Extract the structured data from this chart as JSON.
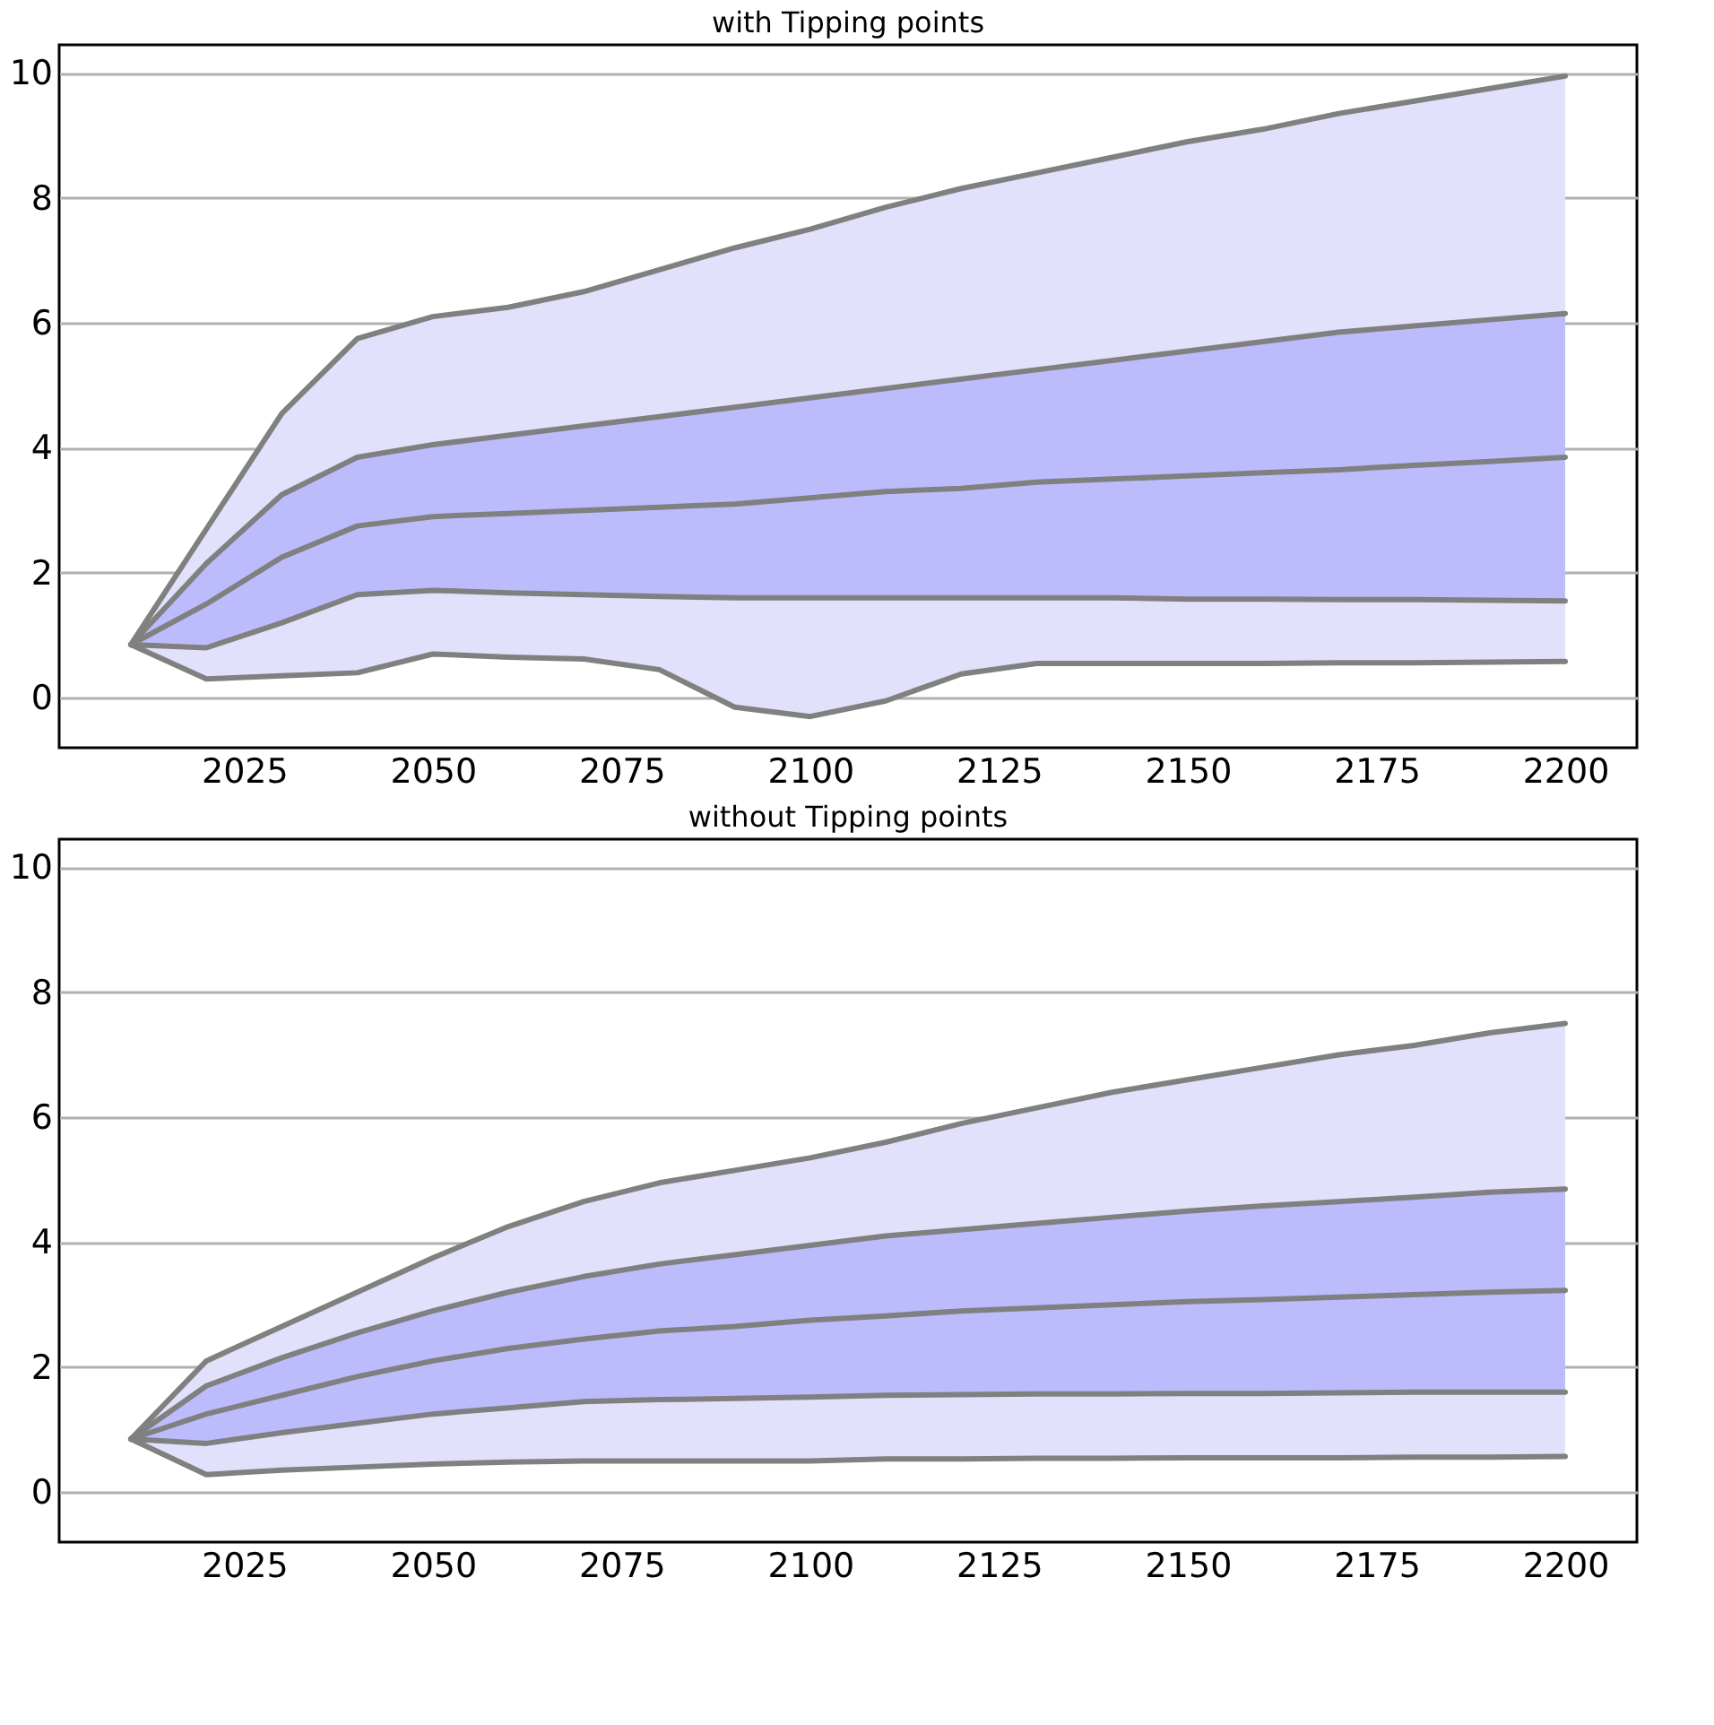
{
  "chart_data": [
    {
      "type": "line",
      "title": "with Tipping points",
      "x": [
        2010,
        2020,
        2030,
        2040,
        2050,
        2060,
        2070,
        2080,
        2090,
        2100,
        2110,
        2120,
        2130,
        2140,
        2150,
        2160,
        2170,
        2180,
        2190,
        2200
      ],
      "series": [
        {
          "color": "#808080",
          "values": [
            0.85,
            2.7,
            4.55,
            5.75,
            6.1,
            6.25,
            6.5,
            6.85,
            7.2,
            7.5,
            7.85,
            8.15,
            8.4,
            8.65,
            8.9,
            9.1,
            9.35,
            9.55,
            9.75,
            9.95
          ],
          "lower": [
            0.85,
            0.3,
            0.35,
            0.4,
            0.7,
            0.65,
            0.62,
            0.45,
            -0.15,
            -0.3,
            -0.05,
            0.38,
            0.55,
            0.55,
            0.55,
            0.55,
            0.56,
            0.56,
            0.57,
            0.58
          ],
          "upper": [
            0.85,
            2.7,
            4.55,
            5.75,
            6.1,
            6.25,
            6.5,
            6.85,
            7.2,
            7.5,
            7.85,
            8.15,
            8.4,
            8.65,
            8.9,
            9.1,
            9.35,
            9.55,
            9.75,
            9.95
          ]
        },
        {
          "color": "#808080",
          "values": [
            0.85,
            2.15,
            3.25,
            3.85,
            4.05,
            4.2,
            4.35,
            4.5,
            4.65,
            4.8,
            4.95,
            5.1,
            5.25,
            5.4,
            5.55,
            5.7,
            5.85,
            5.95,
            6.05,
            6.15
          ]
        },
        {
          "color": "#808080",
          "values": [
            0.85,
            1.5,
            2.25,
            2.75,
            2.9,
            2.95,
            3.0,
            3.05,
            3.1,
            3.2,
            3.3,
            3.35,
            3.45,
            3.5,
            3.55,
            3.6,
            3.65,
            3.72,
            3.78,
            3.85
          ],
          "lower": [
            0.85,
            0.8,
            1.2,
            1.65,
            1.72,
            1.68,
            1.65,
            1.62,
            1.6,
            1.6,
            1.6,
            1.6,
            1.6,
            1.6,
            1.58,
            1.58,
            1.57,
            1.57,
            1.56,
            1.55
          ],
          "upper": [
            0.85,
            2.15,
            3.25,
            3.85,
            4.05,
            4.2,
            4.35,
            4.5,
            4.65,
            4.8,
            4.95,
            5.1,
            5.25,
            5.4,
            5.55,
            5.7,
            5.85,
            5.95,
            6.05,
            6.15
          ]
        },
        {
          "color": "#808080",
          "values": [
            0.85,
            0.8,
            1.2,
            1.65,
            1.72,
            1.68,
            1.65,
            1.62,
            1.6,
            1.6,
            1.6,
            1.6,
            1.6,
            1.6,
            1.58,
            1.58,
            1.57,
            1.57,
            1.56,
            1.55
          ]
        },
        {
          "color": "#808080",
          "values": [
            0.85,
            0.3,
            0.35,
            0.4,
            0.7,
            0.65,
            0.62,
            0.45,
            -0.15,
            -0.3,
            -0.05,
            0.38,
            0.55,
            0.55,
            0.55,
            0.55,
            0.56,
            0.56,
            0.57,
            0.58
          ]
        }
      ],
      "xlim": [
        2000.5,
        2209.5
      ],
      "xticks": [
        2025,
        2050,
        2075,
        2100,
        2125,
        2150,
        2175,
        2200
      ],
      "ylim": [
        -0.8,
        10.45
      ],
      "yticks": [
        0,
        2,
        4,
        6,
        8,
        10
      ],
      "grid": "y",
      "marker": "none",
      "line_style": "solid"
    },
    {
      "type": "line",
      "title": "without Tipping points",
      "x": [
        2010,
        2020,
        2030,
        2040,
        2050,
        2060,
        2070,
        2080,
        2090,
        2100,
        2110,
        2120,
        2130,
        2140,
        2150,
        2160,
        2170,
        2180,
        2190,
        2200
      ],
      "series": [
        {
          "color": "#808080",
          "values": [
            0.85,
            2.1,
            2.65,
            3.2,
            3.75,
            4.25,
            4.65,
            4.95,
            5.15,
            5.35,
            5.6,
            5.9,
            6.15,
            6.4,
            6.6,
            6.8,
            7.0,
            7.15,
            7.35,
            7.5
          ],
          "lower": [
            0.85,
            0.28,
            0.35,
            0.4,
            0.45,
            0.48,
            0.5,
            0.5,
            0.5,
            0.5,
            0.53,
            0.53,
            0.54,
            0.54,
            0.55,
            0.55,
            0.55,
            0.56,
            0.56,
            0.57
          ],
          "upper": [
            0.85,
            2.1,
            2.65,
            3.2,
            3.75,
            4.25,
            4.65,
            4.95,
            5.15,
            5.35,
            5.6,
            5.9,
            6.15,
            6.4,
            6.6,
            6.8,
            7.0,
            7.15,
            7.35,
            7.5
          ]
        },
        {
          "color": "#808080",
          "values": [
            0.85,
            1.7,
            2.15,
            2.55,
            2.9,
            3.2,
            3.45,
            3.65,
            3.8,
            3.95,
            4.1,
            4.2,
            4.3,
            4.4,
            4.5,
            4.58,
            4.65,
            4.72,
            4.8,
            4.85
          ]
        },
        {
          "color": "#808080",
          "values": [
            0.85,
            1.25,
            1.55,
            1.85,
            2.1,
            2.3,
            2.45,
            2.58,
            2.65,
            2.75,
            2.82,
            2.9,
            2.95,
            3.0,
            3.05,
            3.08,
            3.12,
            3.16,
            3.2,
            3.23
          ],
          "lower": [
            0.85,
            0.78,
            0.95,
            1.1,
            1.25,
            1.35,
            1.45,
            1.48,
            1.5,
            1.52,
            1.55,
            1.56,
            1.57,
            1.57,
            1.58,
            1.58,
            1.59,
            1.6,
            1.6,
            1.6
          ],
          "upper": [
            0.85,
            1.7,
            2.15,
            2.55,
            2.9,
            3.2,
            3.45,
            3.65,
            3.8,
            3.95,
            4.1,
            4.2,
            4.3,
            4.4,
            4.5,
            4.58,
            4.65,
            4.72,
            4.8,
            4.85
          ]
        },
        {
          "color": "#808080",
          "values": [
            0.85,
            0.78,
            0.95,
            1.1,
            1.25,
            1.35,
            1.45,
            1.48,
            1.5,
            1.52,
            1.55,
            1.56,
            1.57,
            1.57,
            1.58,
            1.58,
            1.59,
            1.6,
            1.6,
            1.6
          ]
        },
        {
          "color": "#808080",
          "values": [
            0.85,
            0.28,
            0.35,
            0.4,
            0.45,
            0.48,
            0.5,
            0.5,
            0.5,
            0.5,
            0.53,
            0.53,
            0.54,
            0.54,
            0.55,
            0.55,
            0.55,
            0.56,
            0.56,
            0.57
          ]
        }
      ],
      "xlim": [
        2000.5,
        2209.5
      ],
      "xticks": [
        2025,
        2050,
        2075,
        2100,
        2125,
        2150,
        2175,
        2200
      ],
      "ylim": [
        -0.8,
        10.45
      ],
      "yticks": [
        0,
        2,
        4,
        6,
        8,
        10
      ],
      "grid": "y",
      "marker": "none",
      "line_style": "solid"
    }
  ]
}
